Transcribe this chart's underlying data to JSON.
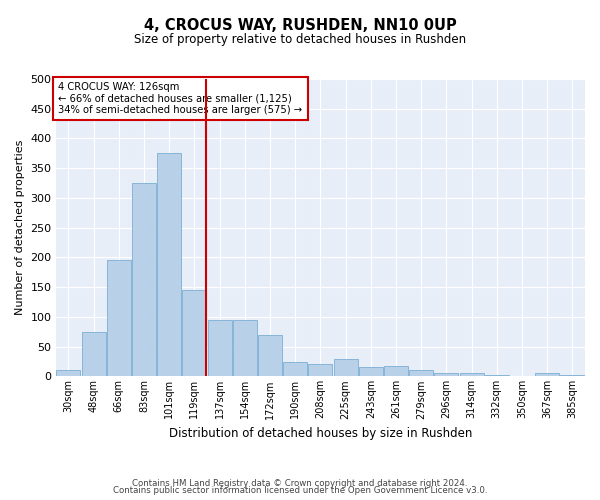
{
  "title": "4, CROCUS WAY, RUSHDEN, NN10 0UP",
  "subtitle": "Size of property relative to detached houses in Rushden",
  "xlabel": "Distribution of detached houses by size in Rushden",
  "ylabel": "Number of detached properties",
  "footer1": "Contains HM Land Registry data © Crown copyright and database right 2024.",
  "footer2": "Contains public sector information licensed under the Open Government Licence v3.0.",
  "annotation_line1": "4 CROCUS WAY: 126sqm",
  "annotation_line2": "← 66% of detached houses are smaller (1,125)",
  "annotation_line3": "34% of semi-detached houses are larger (575) →",
  "bar_color": "#b8d0e8",
  "bar_edge_color": "#7bafd4",
  "vline_color": "#cc0000",
  "annotation_box_color": "#cc0000",
  "background_color": "#e8eef8",
  "categories": [
    "30sqm",
    "48sqm",
    "66sqm",
    "83sqm",
    "101sqm",
    "119sqm",
    "137sqm",
    "154sqm",
    "172sqm",
    "190sqm",
    "208sqm",
    "225sqm",
    "243sqm",
    "261sqm",
    "279sqm",
    "296sqm",
    "314sqm",
    "332sqm",
    "350sqm",
    "367sqm",
    "385sqm"
  ],
  "values": [
    10,
    75,
    195,
    325,
    375,
    145,
    95,
    95,
    70,
    25,
    20,
    30,
    15,
    18,
    10,
    5,
    5,
    2,
    0,
    5,
    2
  ],
  "ylim": [
    0,
    500
  ],
  "yticks": [
    0,
    50,
    100,
    150,
    200,
    250,
    300,
    350,
    400,
    450,
    500
  ],
  "vline_x": 5.45,
  "figwidth": 6.0,
  "figheight": 5.0,
  "dpi": 100
}
